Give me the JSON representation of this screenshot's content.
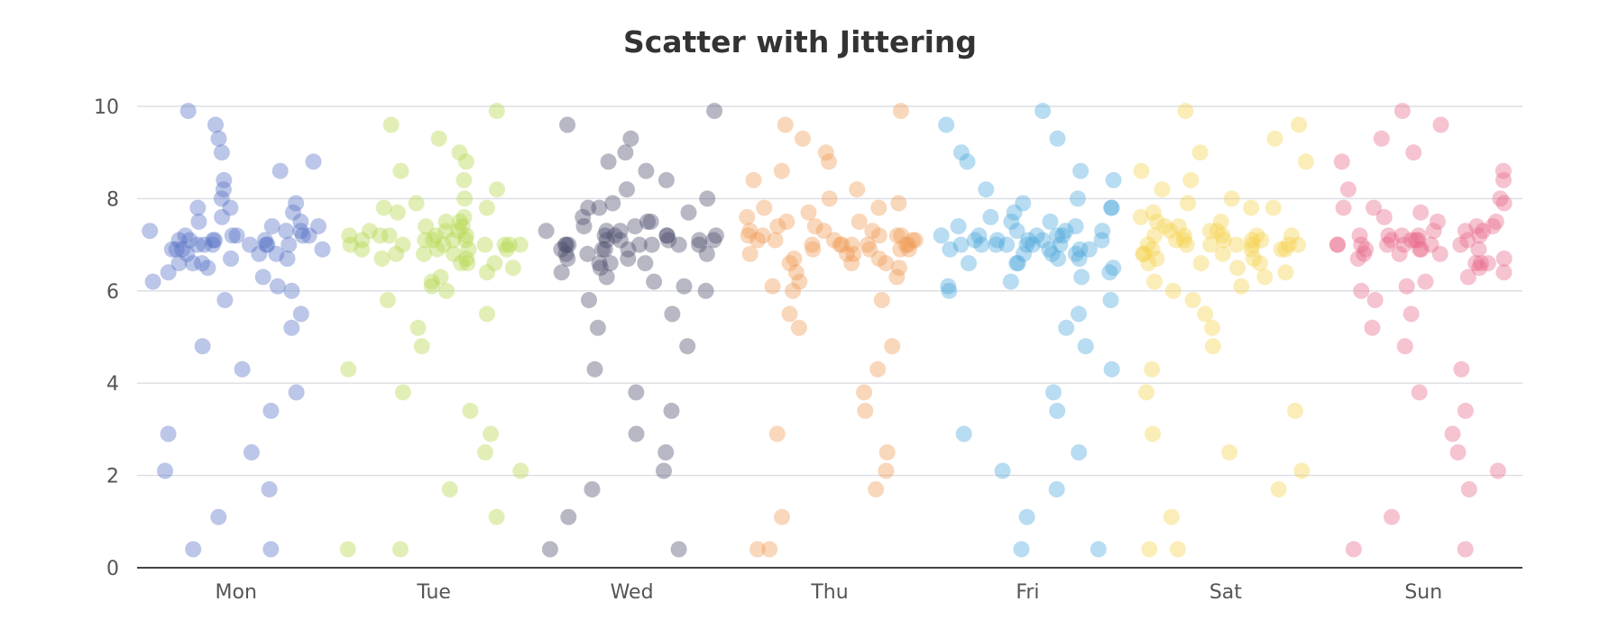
{
  "title": "Scatter with Jittering",
  "chart_data": {
    "type": "scatter",
    "title": "Scatter with Jittering",
    "xlabel": "",
    "ylabel": "",
    "categories": [
      "Mon",
      "Tue",
      "Wed",
      "Thu",
      "Fri",
      "Sat",
      "Sun"
    ],
    "y_ticks": [
      "0",
      "2",
      "4",
      "6",
      "8",
      "10"
    ],
    "ylim": [
      0,
      10
    ],
    "grid": true,
    "legend": "none",
    "jitter": "horizontal, within each category band",
    "point_opacity": 0.4,
    "series": [
      {
        "category": "Mon",
        "color": "#5470c6",
        "values": [
          6.3,
          6.6,
          6.8,
          6.9,
          7,
          7,
          7.1,
          7.2,
          7.4,
          7.7,
          6.1,
          6.5,
          6.7,
          6.9,
          7,
          7.1,
          7.2,
          7.3,
          7.5,
          7.9,
          6.4,
          6.7,
          6.8,
          7,
          7,
          7.1,
          7.2,
          7.3,
          7.6,
          8.2,
          6,
          6.6,
          6.9,
          7,
          7.1,
          7.2,
          7.4,
          7.8,
          8.6,
          9.9,
          5.8,
          5.5,
          5.2,
          4.8,
          4.3,
          3.8,
          3.4,
          2.9,
          2.5,
          2.1,
          1.7,
          1.1,
          0.4,
          0.4,
          9.6,
          9.3,
          9,
          8.8,
          8.4,
          6.2,
          6.6,
          6.9,
          7.1,
          7.3,
          7.5,
          7.8,
          8,
          6.8,
          7,
          7.2
        ]
      },
      {
        "category": "Tue",
        "color": "#b5d64c",
        "values": [
          6.3,
          6.6,
          6.8,
          6.9,
          7,
          7,
          7.1,
          7.2,
          7.4,
          7.7,
          6.1,
          6.5,
          6.7,
          6.9,
          7,
          7.1,
          7.2,
          7.3,
          7.5,
          7.9,
          6.4,
          6.7,
          6.8,
          7,
          7,
          7.1,
          7.2,
          7.3,
          7.6,
          8.2,
          6,
          6.6,
          6.9,
          7,
          7.1,
          7.2,
          7.4,
          7.8,
          8.6,
          9.9,
          5.8,
          5.5,
          5.2,
          4.8,
          4.3,
          3.8,
          3.4,
          2.9,
          2.5,
          2.1,
          1.7,
          1.1,
          0.4,
          0.4,
          9.6,
          9.3,
          9,
          8.8,
          8.4,
          6.2,
          6.6,
          6.9,
          7.1,
          7.3,
          7.5,
          7.8,
          8,
          6.8,
          7,
          7.2
        ]
      },
      {
        "category": "Wed",
        "color": "#4a4d6b",
        "values": [
          6.3,
          6.6,
          6.8,
          6.9,
          7,
          7,
          7.1,
          7.2,
          7.4,
          7.7,
          6.1,
          6.5,
          6.7,
          6.9,
          7,
          7.1,
          7.2,
          7.3,
          7.5,
          7.9,
          6.4,
          6.7,
          6.8,
          7,
          7,
          7.1,
          7.2,
          7.3,
          7.6,
          8.2,
          6,
          6.6,
          6.9,
          7,
          7.1,
          7.2,
          7.4,
          7.8,
          8.6,
          9.9,
          5.8,
          5.5,
          5.2,
          4.8,
          4.3,
          3.8,
          3.4,
          2.9,
          2.5,
          2.1,
          1.7,
          1.1,
          0.4,
          0.4,
          9.6,
          9.3,
          9,
          8.8,
          8.4,
          6.2,
          6.6,
          6.9,
          7.1,
          7.3,
          7.5,
          7.8,
          8,
          6.8,
          7,
          7.2
        ]
      },
      {
        "category": "Thu",
        "color": "#f09a55",
        "values": [
          6.3,
          6.6,
          6.8,
          6.9,
          7,
          7,
          7.1,
          7.2,
          7.4,
          7.7,
          6.1,
          6.5,
          6.7,
          6.9,
          7,
          7.1,
          7.2,
          7.3,
          7.5,
          7.9,
          6.4,
          6.7,
          6.8,
          7,
          7,
          7.1,
          7.2,
          7.3,
          7.6,
          8.2,
          6,
          6.6,
          6.9,
          7,
          7.1,
          7.2,
          7.4,
          7.8,
          8.6,
          9.9,
          5.8,
          5.5,
          5.2,
          4.8,
          4.3,
          3.8,
          3.4,
          2.9,
          2.5,
          2.1,
          1.7,
          1.1,
          0.4,
          0.4,
          9.6,
          9.3,
          9,
          8.8,
          8.4,
          6.2,
          6.6,
          6.9,
          7.1,
          7.3,
          7.5,
          7.8,
          8,
          6.8,
          7,
          7.2
        ]
      },
      {
        "category": "Fri",
        "color": "#4ea8dc",
        "values": [
          6.3,
          6.6,
          6.8,
          6.9,
          7,
          7,
          7.1,
          7.2,
          7.4,
          7.7,
          6.1,
          6.5,
          6.7,
          6.9,
          7,
          7.1,
          7.2,
          7.3,
          7.5,
          7.9,
          6.4,
          6.7,
          6.8,
          7,
          7,
          7.1,
          7.2,
          7.3,
          7.6,
          8.2,
          6,
          6.6,
          6.9,
          7,
          7.1,
          7.2,
          7.4,
          7.8,
          8.6,
          9.9,
          5.8,
          5.5,
          5.2,
          4.8,
          4.3,
          3.8,
          3.4,
          2.9,
          2.5,
          2.1,
          1.7,
          1.1,
          0.4,
          0.4,
          9.6,
          9.3,
          9,
          8.8,
          8.4,
          6.2,
          6.6,
          6.9,
          7.1,
          7.3,
          7.5,
          7.8,
          8,
          6.8,
          7,
          7.2
        ]
      },
      {
        "category": "Sat",
        "color": "#f4d24c",
        "values": [
          6.3,
          6.6,
          6.8,
          6.9,
          7,
          7,
          7.1,
          7.2,
          7.4,
          7.7,
          6.1,
          6.5,
          6.7,
          6.9,
          7,
          7.1,
          7.2,
          7.3,
          7.5,
          7.9,
          6.4,
          6.7,
          6.8,
          7,
          7,
          7.1,
          7.2,
          7.3,
          7.6,
          8.2,
          6,
          6.6,
          6.9,
          7,
          7.1,
          7.2,
          7.4,
          7.8,
          8.6,
          9.9,
          5.8,
          5.5,
          5.2,
          4.8,
          4.3,
          3.8,
          3.4,
          2.9,
          2.5,
          2.1,
          1.7,
          1.1,
          0.4,
          0.4,
          9.6,
          9.3,
          9,
          8.8,
          8.4,
          6.2,
          6.6,
          6.9,
          7.1,
          7.3,
          7.5,
          7.8,
          8,
          6.8,
          7,
          7.2
        ]
      },
      {
        "category": "Sun",
        "color": "#e8688a",
        "values": [
          6.3,
          6.6,
          6.8,
          6.9,
          7,
          7,
          7.1,
          7.2,
          7.4,
          7.7,
          6.1,
          6.5,
          6.7,
          6.9,
          7,
          7.1,
          7.2,
          7.3,
          7.5,
          7.9,
          6.4,
          6.7,
          6.8,
          7,
          7,
          7.1,
          7.2,
          7.3,
          7.6,
          8.2,
          6,
          6.6,
          6.9,
          7,
          7.1,
          7.2,
          7.4,
          7.8,
          8.6,
          9.9,
          5.8,
          5.5,
          5.2,
          4.8,
          4.3,
          3.8,
          3.4,
          2.9,
          2.5,
          2.1,
          1.7,
          1.1,
          0.4,
          0.4,
          9.6,
          9.3,
          9,
          8.8,
          8.4,
          6.2,
          6.6,
          6.9,
          7.1,
          7.3,
          7.5,
          7.8,
          8,
          6.8,
          7,
          7.2
        ]
      }
    ]
  }
}
